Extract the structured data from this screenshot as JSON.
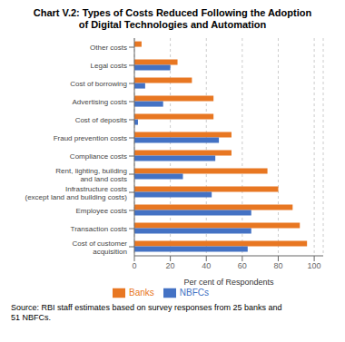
{
  "chart_data": {
    "type": "bar",
    "orientation": "horizontal",
    "title": "Chart V.2: Types of Costs Reduced Following the Adoption\nof Digital Technologies and Automation",
    "categories": [
      "Cost of customer\nacquisition",
      "Transaction costs",
      "Employee costs",
      "Infrastructure costs\n(except land and building costs)",
      "Rent, lighting, building\nand land costs",
      "Compliance costs",
      "Fraud prevention costs",
      "Cost of deposits",
      "Advertising costs",
      "Cost of borrowing",
      "Legal costs",
      "Other costs"
    ],
    "series": [
      {
        "name": "Banks",
        "color": "#E87722",
        "values": [
          96,
          92,
          88,
          80,
          74,
          54,
          54,
          44,
          44,
          32,
          24,
          4
        ]
      },
      {
        "name": "NBFCs",
        "color": "#4472C4",
        "values": [
          63,
          65,
          65,
          43,
          27,
          45,
          47,
          2,
          16,
          6,
          20,
          0
        ]
      }
    ],
    "xlabel": "Per cent of Respondents",
    "xlim": [
      0,
      105
    ],
    "xticks": [
      0,
      20,
      40,
      60,
      80,
      100
    ],
    "grid": true,
    "legend": "bottom",
    "source": "Source: RBI staff estimates based on survey responses from 25 banks and\n51 NBFCs."
  }
}
